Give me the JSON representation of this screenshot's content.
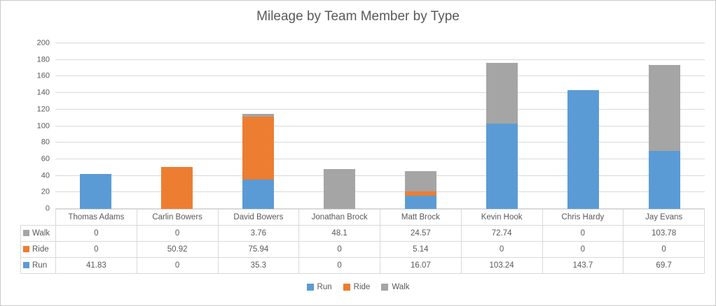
{
  "chart_data": {
    "type": "bar",
    "stacked": true,
    "title": "Mileage by Team Member by Type",
    "categories": [
      "Thomas Adams",
      "Carlin Bowers",
      "David Bowers",
      "Jonathan Brock",
      "Matt Brock",
      "Kevin Hook",
      "Chris Hardy",
      "Jay Evans"
    ],
    "series": [
      {
        "name": "Run",
        "color": "#5B9BD5",
        "values": [
          41.83,
          0,
          35.3,
          0,
          16.07,
          103.24,
          143.7,
          69.7
        ]
      },
      {
        "name": "Ride",
        "color": "#ED7D31",
        "values": [
          0,
          50.92,
          75.94,
          0,
          5.14,
          0,
          0,
          0
        ]
      },
      {
        "name": "Walk",
        "color": "#A5A5A5",
        "values": [
          0,
          0,
          3.76,
          48.1,
          24.57,
          72.74,
          0,
          103.78
        ]
      }
    ],
    "xlabel": "",
    "ylabel": "",
    "ylim": [
      0,
      200
    ],
    "ytick_step": 20,
    "grid": true,
    "legend_position": "bottom",
    "legend_order": [
      "Run",
      "Ride",
      "Walk"
    ],
    "data_table": {
      "visible": true,
      "row_order": [
        "Walk",
        "Ride",
        "Run"
      ]
    }
  },
  "theme": {
    "text_color": "#595959",
    "gridline_color": "#D9D9D9",
    "table_border_color": "#D9D9D9",
    "frame_border_color": "#C9C9C9",
    "background": "#FFFFFF"
  }
}
